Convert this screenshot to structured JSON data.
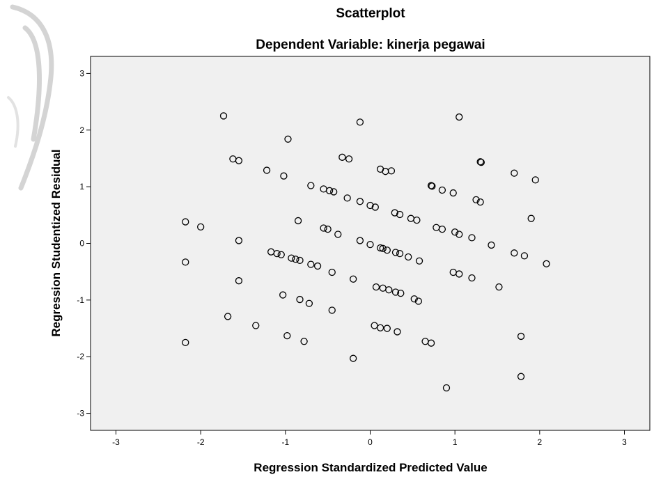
{
  "chart_data": {
    "type": "scatter",
    "title": "Scatterplot",
    "subtitle": "Dependent Variable: kinerja pegawai",
    "xlabel": "Regression Standardized Predicted Value",
    "ylabel": "Regression Studentized Residual",
    "xlim": [
      -3.3,
      3.3
    ],
    "ylim": [
      -3.3,
      3.3
    ],
    "xticks": [
      "-3",
      "-2",
      "-1",
      "0",
      "1",
      "2",
      "3"
    ],
    "yticks": [
      "-3",
      "-2",
      "-1",
      "0",
      "1",
      "2",
      "3"
    ],
    "grid": false,
    "legend": "none",
    "plot_background": "#f0f0f0",
    "marker": "open-circle",
    "points": [
      [
        -1.73,
        2.25
      ],
      [
        -0.12,
        2.14
      ],
      [
        1.05,
        2.23
      ],
      [
        -0.97,
        1.84
      ],
      [
        -1.62,
        1.49
      ],
      [
        -1.55,
        1.46
      ],
      [
        -1.22,
        1.29
      ],
      [
        -1.02,
        1.19
      ],
      [
        -0.33,
        1.52
      ],
      [
        -0.25,
        1.49
      ],
      [
        0.12,
        1.31
      ],
      [
        0.18,
        1.27
      ],
      [
        0.25,
        1.28
      ],
      [
        1.3,
        1.44
      ],
      [
        1.31,
        1.43
      ],
      [
        1.7,
        1.24
      ],
      [
        1.95,
        1.12
      ],
      [
        -0.7,
        1.02
      ],
      [
        -0.55,
        0.96
      ],
      [
        -0.48,
        0.93
      ],
      [
        -0.43,
        0.91
      ],
      [
        -0.27,
        0.8
      ],
      [
        -0.12,
        0.74
      ],
      [
        0.0,
        0.67
      ],
      [
        0.06,
        0.64
      ],
      [
        0.29,
        0.54
      ],
      [
        0.35,
        0.51
      ],
      [
        0.48,
        0.44
      ],
      [
        0.55,
        0.41
      ],
      [
        0.72,
        1.02
      ],
      [
        0.73,
        1.01
      ],
      [
        0.85,
        0.94
      ],
      [
        0.98,
        0.89
      ],
      [
        1.25,
        0.77
      ],
      [
        1.3,
        0.73
      ],
      [
        1.9,
        0.44
      ],
      [
        -2.18,
        0.38
      ],
      [
        -2.0,
        0.29
      ],
      [
        -0.85,
        0.4
      ],
      [
        -0.55,
        0.27
      ],
      [
        -0.5,
        0.25
      ],
      [
        -0.38,
        0.16
      ],
      [
        -1.55,
        0.05
      ],
      [
        -0.12,
        0.05
      ],
      [
        0.0,
        -0.02
      ],
      [
        0.12,
        -0.08
      ],
      [
        0.15,
        -0.09
      ],
      [
        0.2,
        -0.12
      ],
      [
        0.3,
        -0.16
      ],
      [
        0.35,
        -0.18
      ],
      [
        0.45,
        -0.24
      ],
      [
        0.58,
        -0.31
      ],
      [
        0.78,
        0.28
      ],
      [
        0.85,
        0.25
      ],
      [
        1.0,
        0.2
      ],
      [
        1.05,
        0.16
      ],
      [
        1.2,
        0.1
      ],
      [
        1.43,
        -0.03
      ],
      [
        1.7,
        -0.17
      ],
      [
        1.82,
        -0.22
      ],
      [
        2.08,
        -0.36
      ],
      [
        -1.17,
        -0.15
      ],
      [
        -1.1,
        -0.18
      ],
      [
        -1.05,
        -0.2
      ],
      [
        -0.93,
        -0.26
      ],
      [
        -0.88,
        -0.28
      ],
      [
        -0.83,
        -0.3
      ],
      [
        -0.7,
        -0.37
      ],
      [
        -0.62,
        -0.4
      ],
      [
        -2.18,
        -0.33
      ],
      [
        -0.45,
        -0.51
      ],
      [
        -0.2,
        -0.63
      ],
      [
        -1.55,
        -0.66
      ],
      [
        0.07,
        -0.77
      ],
      [
        0.15,
        -0.79
      ],
      [
        0.22,
        -0.82
      ],
      [
        0.3,
        -0.86
      ],
      [
        0.36,
        -0.88
      ],
      [
        0.52,
        -0.98
      ],
      [
        0.57,
        -1.02
      ],
      [
        0.98,
        -0.51
      ],
      [
        1.05,
        -0.54
      ],
      [
        1.2,
        -0.61
      ],
      [
        1.52,
        -0.77
      ],
      [
        -1.03,
        -0.91
      ],
      [
        -0.83,
        -0.99
      ],
      [
        -0.72,
        -1.06
      ],
      [
        -0.45,
        -1.18
      ],
      [
        -1.68,
        -1.29
      ],
      [
        -1.35,
        -1.45
      ],
      [
        -0.98,
        -1.63
      ],
      [
        -0.78,
        -1.73
      ],
      [
        0.05,
        -1.45
      ],
      [
        0.12,
        -1.49
      ],
      [
        0.2,
        -1.5
      ],
      [
        0.32,
        -1.56
      ],
      [
        0.65,
        -1.73
      ],
      [
        0.72,
        -1.76
      ],
      [
        1.78,
        -1.64
      ],
      [
        -2.18,
        -1.75
      ],
      [
        -0.2,
        -2.03
      ],
      [
        1.78,
        -2.35
      ],
      [
        0.9,
        -2.55
      ]
    ]
  }
}
